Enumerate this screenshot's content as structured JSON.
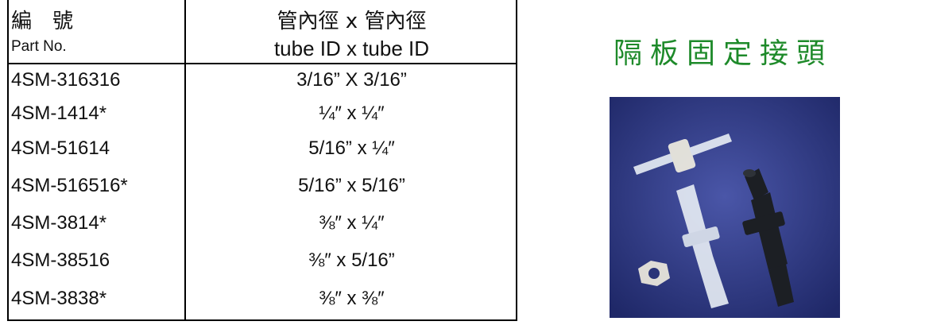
{
  "header": {
    "part_no_zh": "編　號",
    "part_no_en": "Part No.",
    "size_zh": "管內徑 x 管內徑",
    "size_en": "tube ID x tube ID"
  },
  "title": "隔板固定接頭",
  "table": {
    "rows": [
      [
        "4SM-316316",
        "3/16” X 3/16”"
      ],
      [
        "4SM-1414*",
        "¼″ x ¼″"
      ],
      [
        "4SM-51614",
        "5/16” x ¼″"
      ],
      [
        "4SM-516516*",
        "5/16” x 5/16”"
      ],
      [
        "4SM-3814*",
        "⅜″ x ¼″"
      ],
      [
        "4SM-38516",
        "⅜″ x 5/16”"
      ],
      [
        "4SM-3838*",
        "⅜″ x ⅜″"
      ]
    ]
  }
}
